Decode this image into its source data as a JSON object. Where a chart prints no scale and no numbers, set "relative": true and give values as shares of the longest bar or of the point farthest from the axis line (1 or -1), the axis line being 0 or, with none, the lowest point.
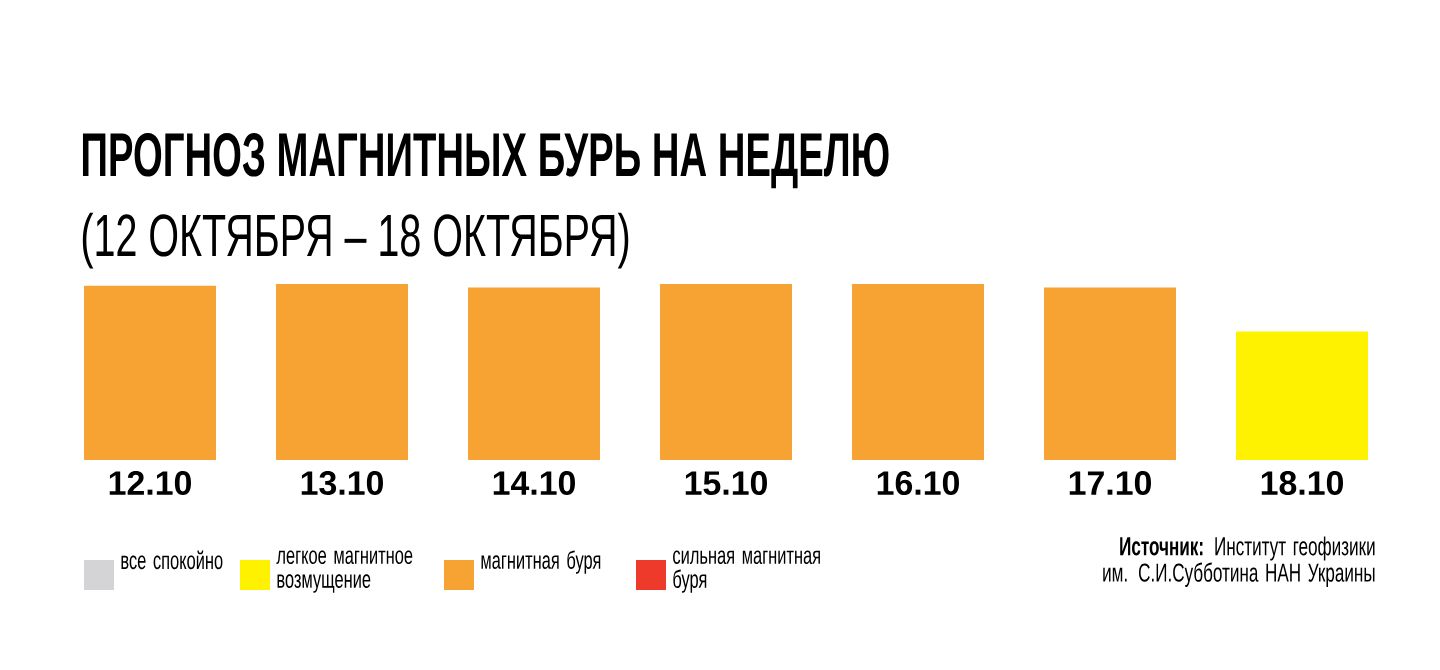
{
  "chart_data": {
    "type": "bar",
    "title": "ПРОГНОЗ МАГНИТНЫХ БУРЬ НА НЕДЕЛЮ",
    "subtitle": "(12 ОКТЯБРЯ – 18 ОКТЯБРЯ)",
    "categories": [
      "12.10",
      "13.10",
      "14.10",
      "15.10",
      "16.10",
      "17.10",
      "18.10"
    ],
    "relative": true,
    "stacked": true,
    "legend": "bottom",
    "series": [
      {
        "name": "все спокойно",
        "color": "#d4d4d6",
        "values": [
          null,
          null,
          null,
          null,
          null,
          null,
          null
        ]
      },
      {
        "name": "легкое магнитное возмущение",
        "color": "#fff200",
        "values": [
          null,
          null,
          null,
          null,
          null,
          null,
          0.73
        ]
      },
      {
        "name": "магнитная буря",
        "color": "#f7a334",
        "values": [
          0.99,
          1,
          0.98,
          1,
          1,
          0.98,
          null
        ]
      },
      {
        "name": "сильная магнитная буря",
        "color": "#ee3a2b",
        "values": [
          null,
          null,
          null,
          null,
          null,
          null,
          null
        ]
      }
    ],
    "annotations": [
      "**Источник:** Институт геофизики им. С.И.Субботина НАН Украины"
    ]
  }
}
